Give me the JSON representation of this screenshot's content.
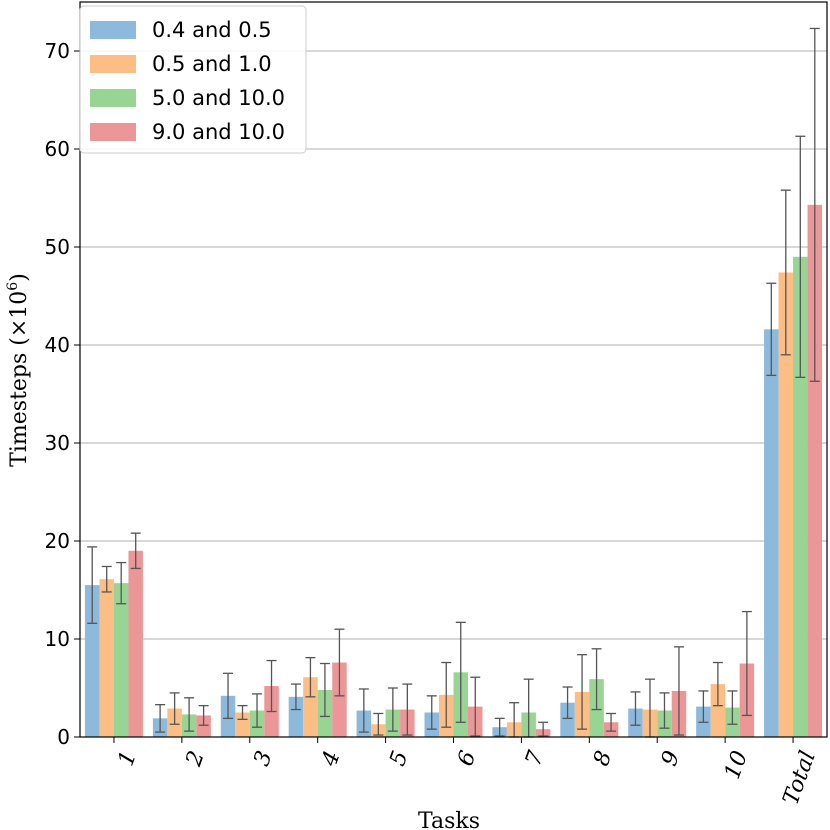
{
  "chart_data": {
    "type": "bar",
    "title": "",
    "xlabel": "Tasks",
    "ylabel": "Timesteps (×10",
    "ylabel_exponent": "6",
    "ylabel_close": ")",
    "ylim": [
      0,
      75
    ],
    "yticks": [
      0,
      10,
      20,
      30,
      40,
      50,
      60,
      70
    ],
    "grid": "y",
    "legend_position": "top-left",
    "categories": [
      "1",
      "2",
      "3",
      "4",
      "5",
      "6",
      "7",
      "8",
      "9",
      "10",
      "Total"
    ],
    "series": [
      {
        "name": "0.4 and 0.5",
        "color": "#8dbadc",
        "values": [
          15.5,
          1.9,
          4.2,
          4.1,
          2.7,
          2.5,
          1.0,
          3.5,
          2.9,
          3.1,
          41.6
        ],
        "errors": [
          3.9,
          1.4,
          2.3,
          1.3,
          2.2,
          1.7,
          0.9,
          1.6,
          1.7,
          1.6,
          4.7
        ]
      },
      {
        "name": "0.5 and 1.0",
        "color": "#fdbe85",
        "values": [
          16.1,
          2.9,
          2.5,
          6.1,
          1.3,
          4.3,
          1.5,
          4.6,
          2.8,
          5.4,
          47.4
        ],
        "errors": [
          1.3,
          1.6,
          0.7,
          2.0,
          1.1,
          3.3,
          2.0,
          3.8,
          3.1,
          2.2,
          8.4
        ]
      },
      {
        "name": "5.0 and 10.0",
        "color": "#98d493",
        "values": [
          15.7,
          2.3,
          2.7,
          4.8,
          2.8,
          6.6,
          2.5,
          5.9,
          2.7,
          3.0,
          49.0
        ],
        "errors": [
          2.1,
          1.7,
          1.7,
          2.7,
          2.2,
          5.1,
          3.4,
          3.1,
          1.8,
          1.7,
          12.3
        ]
      },
      {
        "name": "9.0 and 10.0",
        "color": "#ec9797",
        "values": [
          19.0,
          2.2,
          5.2,
          7.6,
          2.8,
          3.1,
          0.8,
          1.5,
          4.7,
          7.5,
          54.3
        ],
        "errors": [
          1.8,
          1.0,
          2.6,
          3.4,
          2.6,
          3.0,
          0.7,
          0.9,
          4.5,
          5.3,
          18.0
        ]
      }
    ]
  }
}
